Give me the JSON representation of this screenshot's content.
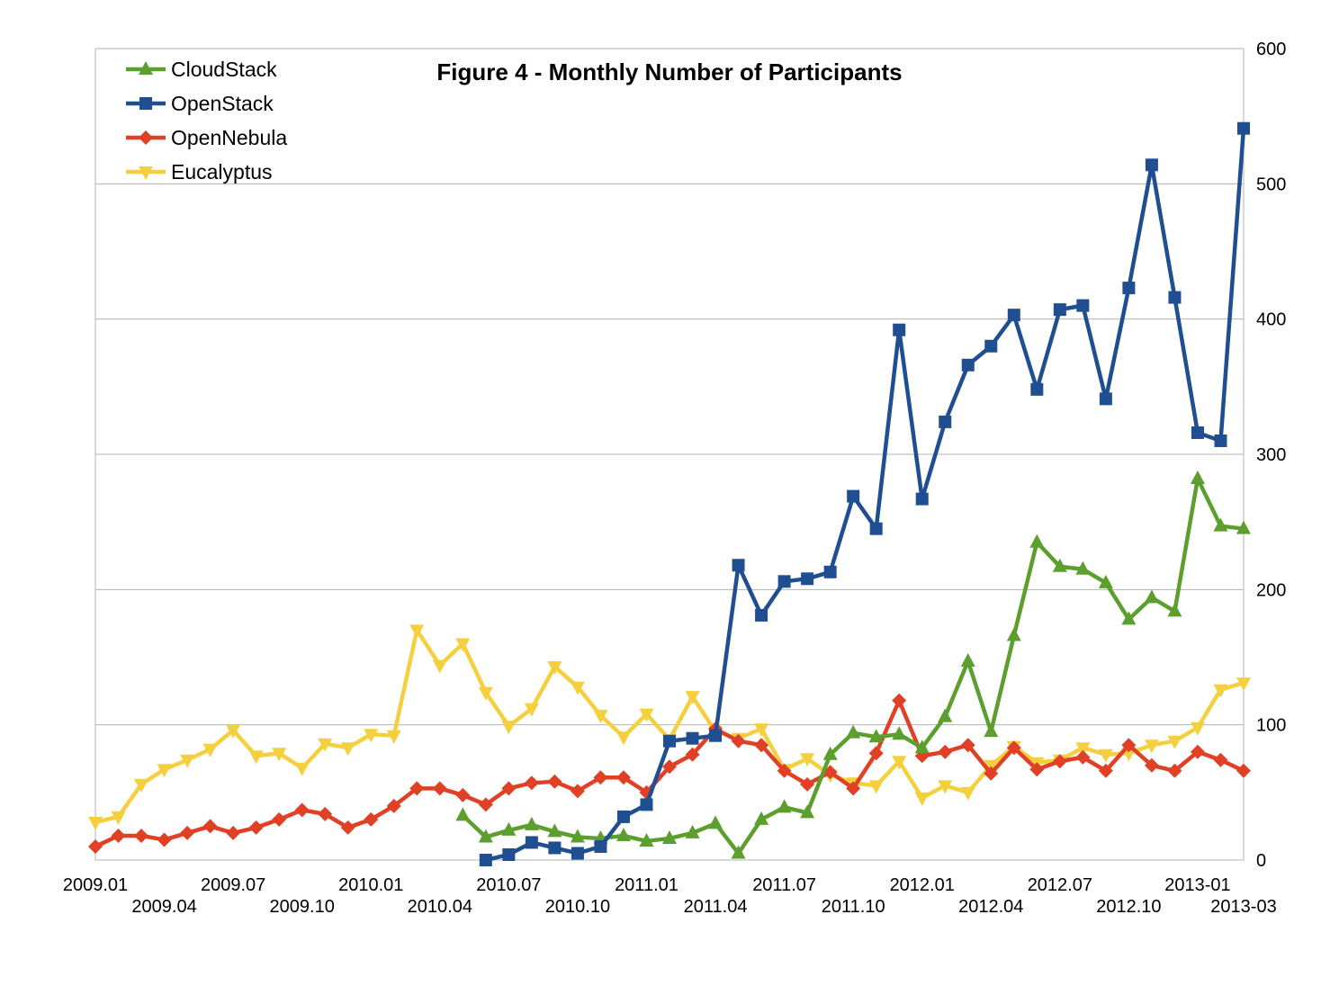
{
  "chart_data": {
    "type": "line",
    "title": "Figure 4 - Monthly Number of Participants",
    "xlabel": "",
    "ylabel": "",
    "ylim": [
      0,
      600
    ],
    "y_ticks": [
      0,
      100,
      200,
      300,
      400,
      500,
      600
    ],
    "y_axis_side": "right",
    "grid": "horizontal",
    "legend_position": "top-left",
    "x_ticks_row1": [
      "2009.01",
      "2009.07",
      "2010.01",
      "2010.07",
      "2011.01",
      "2011.07",
      "2012.01",
      "2012.07",
      "2013-01"
    ],
    "x_ticks_row2": [
      "2009.04",
      "2009.10",
      "2010.04",
      "2010.10",
      "2011.04",
      "2011.10",
      "2012.04",
      "2012.10",
      "2013-03"
    ],
    "x": [
      "2009-01",
      "2009-02",
      "2009-03",
      "2009-04",
      "2009-05",
      "2009-06",
      "2009-07",
      "2009-08",
      "2009-09",
      "2009-10",
      "2009-11",
      "2009-12",
      "2010-01",
      "2010-02",
      "2010-03",
      "2010-04",
      "2010-05",
      "2010-06",
      "2010-07",
      "2010-08",
      "2010-09",
      "2010-10",
      "2010-11",
      "2010-12",
      "2011-01",
      "2011-02",
      "2011-03",
      "2011-04",
      "2011-05",
      "2011-06",
      "2011-07",
      "2011-08",
      "2011-09",
      "2011-10",
      "2011-11",
      "2011-12",
      "2012-01",
      "2012-02",
      "2012-03",
      "2012-04",
      "2012-05",
      "2012-06",
      "2012-07",
      "2012-08",
      "2012-09",
      "2012-10",
      "2012-11",
      "2012-12",
      "2013-01",
      "2013-02",
      "2013-03"
    ],
    "series": [
      {
        "name": "CloudStack",
        "color": "#5c9f2e",
        "marker": "triangle-up",
        "values": [
          null,
          null,
          null,
          null,
          null,
          null,
          null,
          null,
          null,
          null,
          null,
          null,
          null,
          null,
          null,
          null,
          33,
          17,
          22,
          26,
          21,
          17,
          16,
          18,
          14,
          16,
          20,
          27,
          5,
          30,
          39,
          35,
          78,
          94,
          91,
          93,
          83,
          106,
          147,
          95,
          166,
          235,
          217,
          215,
          205,
          178,
          194,
          184,
          282,
          247,
          245
        ]
      },
      {
        "name": "OpenStack",
        "color": "#1f4e91",
        "marker": "square",
        "values": [
          null,
          null,
          null,
          null,
          null,
          null,
          null,
          null,
          null,
          null,
          null,
          null,
          null,
          null,
          null,
          null,
          null,
          0,
          4,
          13,
          9,
          5,
          10,
          32,
          41,
          88,
          90,
          92,
          218,
          181,
          206,
          208,
          213,
          269,
          245,
          392,
          267,
          324,
          366,
          380,
          403,
          348,
          407,
          410,
          341,
          423,
          514,
          416,
          316,
          310,
          541
        ]
      },
      {
        "name": "OpenNebula",
        "color": "#e04026",
        "marker": "diamond",
        "values": [
          10,
          18,
          18,
          15,
          20,
          25,
          20,
          24,
          30,
          37,
          34,
          24,
          30,
          40,
          53,
          53,
          48,
          41,
          53,
          57,
          58,
          51,
          61,
          61,
          50,
          69,
          78,
          97,
          88,
          85,
          66,
          56,
          65,
          53,
          79,
          118,
          77,
          80,
          85,
          64,
          83,
          67,
          73,
          76,
          66,
          85,
          70,
          66,
          80,
          74,
          66
        ]
      },
      {
        "name": "Eucalyptus",
        "color": "#f4d03f",
        "marker": "triangle-down",
        "values": [
          28,
          32,
          56,
          67,
          74,
          82,
          96,
          77,
          79,
          68,
          86,
          83,
          93,
          92,
          170,
          144,
          160,
          124,
          99,
          112,
          143,
          128,
          107,
          91,
          108,
          89,
          121,
          95,
          90,
          97,
          67,
          75,
          63,
          57,
          55,
          73,
          46,
          55,
          50,
          70,
          84,
          72,
          74,
          83,
          78,
          79,
          85,
          88,
          98,
          126,
          131
        ]
      }
    ]
  }
}
